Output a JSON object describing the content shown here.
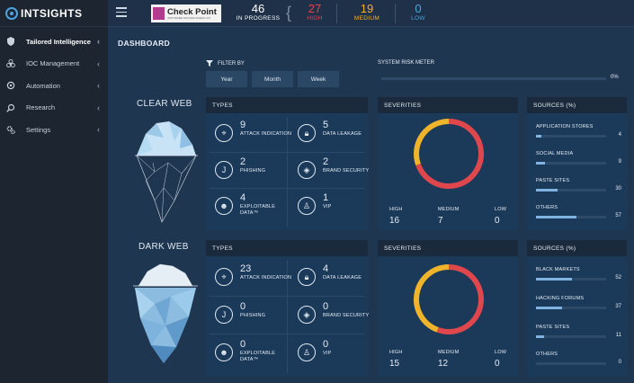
{
  "sidebar": {
    "logo": "INTSIGHTS",
    "items": [
      {
        "label": "Tailored Intelligence",
        "icon": "shield-icon"
      },
      {
        "label": "IOC Management",
        "icon": "biohazard-icon"
      },
      {
        "label": "Automation",
        "icon": "automation-icon"
      },
      {
        "label": "Research",
        "icon": "search-icon"
      },
      {
        "label": "Settings",
        "icon": "gear-icon"
      }
    ]
  },
  "topbar": {
    "brand": "Check Point",
    "brand_sub": "SOFTWARE TECHNOLOGIES LTD",
    "in_progress": {
      "value": "46",
      "label": "IN PROGRESS"
    },
    "high": {
      "value": "27",
      "label": "HIGH"
    },
    "medium": {
      "value": "19",
      "label": "MEDIUM"
    },
    "low": {
      "value": "0",
      "label": "LOW"
    },
    "colors": {
      "high": "#e0474c",
      "medium": "#f0b42a",
      "low": "#4da3e0"
    }
  },
  "dashboard": {
    "title": "DASHBOARD",
    "filter_label": "FILTER BY",
    "filters": [
      "Year",
      "Month",
      "Week"
    ],
    "risk_label": "SYSTEM RISK METER",
    "risk_value": "0%"
  },
  "clear_web": {
    "title": "CLEAR WEB",
    "types_title": "TYPES",
    "types": [
      {
        "num": "9",
        "label": "ATTACK INDICATION",
        "icon": "target-icon"
      },
      {
        "num": "5",
        "label": "DATA LEAKAGE",
        "icon": "lock-icon"
      },
      {
        "num": "2",
        "label": "PHISHING",
        "icon": "hook-icon"
      },
      {
        "num": "2",
        "label": "BRAND SECURITY",
        "icon": "badge-icon"
      },
      {
        "num": "4",
        "label": "EXPLOITABLE DATA™",
        "icon": "hacker-icon"
      },
      {
        "num": "1",
        "label": "VIP",
        "icon": "vip-icon"
      }
    ],
    "severities_title": "SEVERITIES",
    "severities": [
      {
        "label": "HIGH",
        "value": 16
      },
      {
        "label": "MEDIUM",
        "value": 7
      },
      {
        "label": "LOW",
        "value": 0
      }
    ],
    "sources_title": "SOURCES (%)",
    "sources": [
      {
        "label": "APPLICATION STORES",
        "value": "4"
      },
      {
        "label": "SOCIAL MEDIA",
        "value": "9"
      },
      {
        "label": "PASTE SITES",
        "value": "30"
      },
      {
        "label": "OTHERS",
        "value": "57"
      }
    ]
  },
  "dark_web": {
    "title": "DARK WEB",
    "types_title": "TYPES",
    "types": [
      {
        "num": "23",
        "label": "ATTACK INDICATION",
        "icon": "target-icon"
      },
      {
        "num": "4",
        "label": "DATA LEAKAGE",
        "icon": "lock-icon"
      },
      {
        "num": "0",
        "label": "PHISHING",
        "icon": "hook-icon"
      },
      {
        "num": "0",
        "label": "BRAND SECURITY",
        "icon": "badge-icon"
      },
      {
        "num": "0",
        "label": "EXPLOITABLE DATA™",
        "icon": "hacker-icon"
      },
      {
        "num": "0",
        "label": "VIP",
        "icon": "vip-icon"
      }
    ],
    "severities_title": "SEVERITIES",
    "severities": [
      {
        "label": "HIGH",
        "value": 15
      },
      {
        "label": "MEDIUM",
        "value": 12
      },
      {
        "label": "LOW",
        "value": 0
      }
    ],
    "sources_title": "SOURCES (%)",
    "sources": [
      {
        "label": "BLACK MARKETS",
        "value": "52"
      },
      {
        "label": "HACKING FORUMS",
        "value": "37"
      },
      {
        "label": "PASTE SITES",
        "value": "11"
      },
      {
        "label": "OTHERS",
        "value": "0"
      }
    ]
  }
}
